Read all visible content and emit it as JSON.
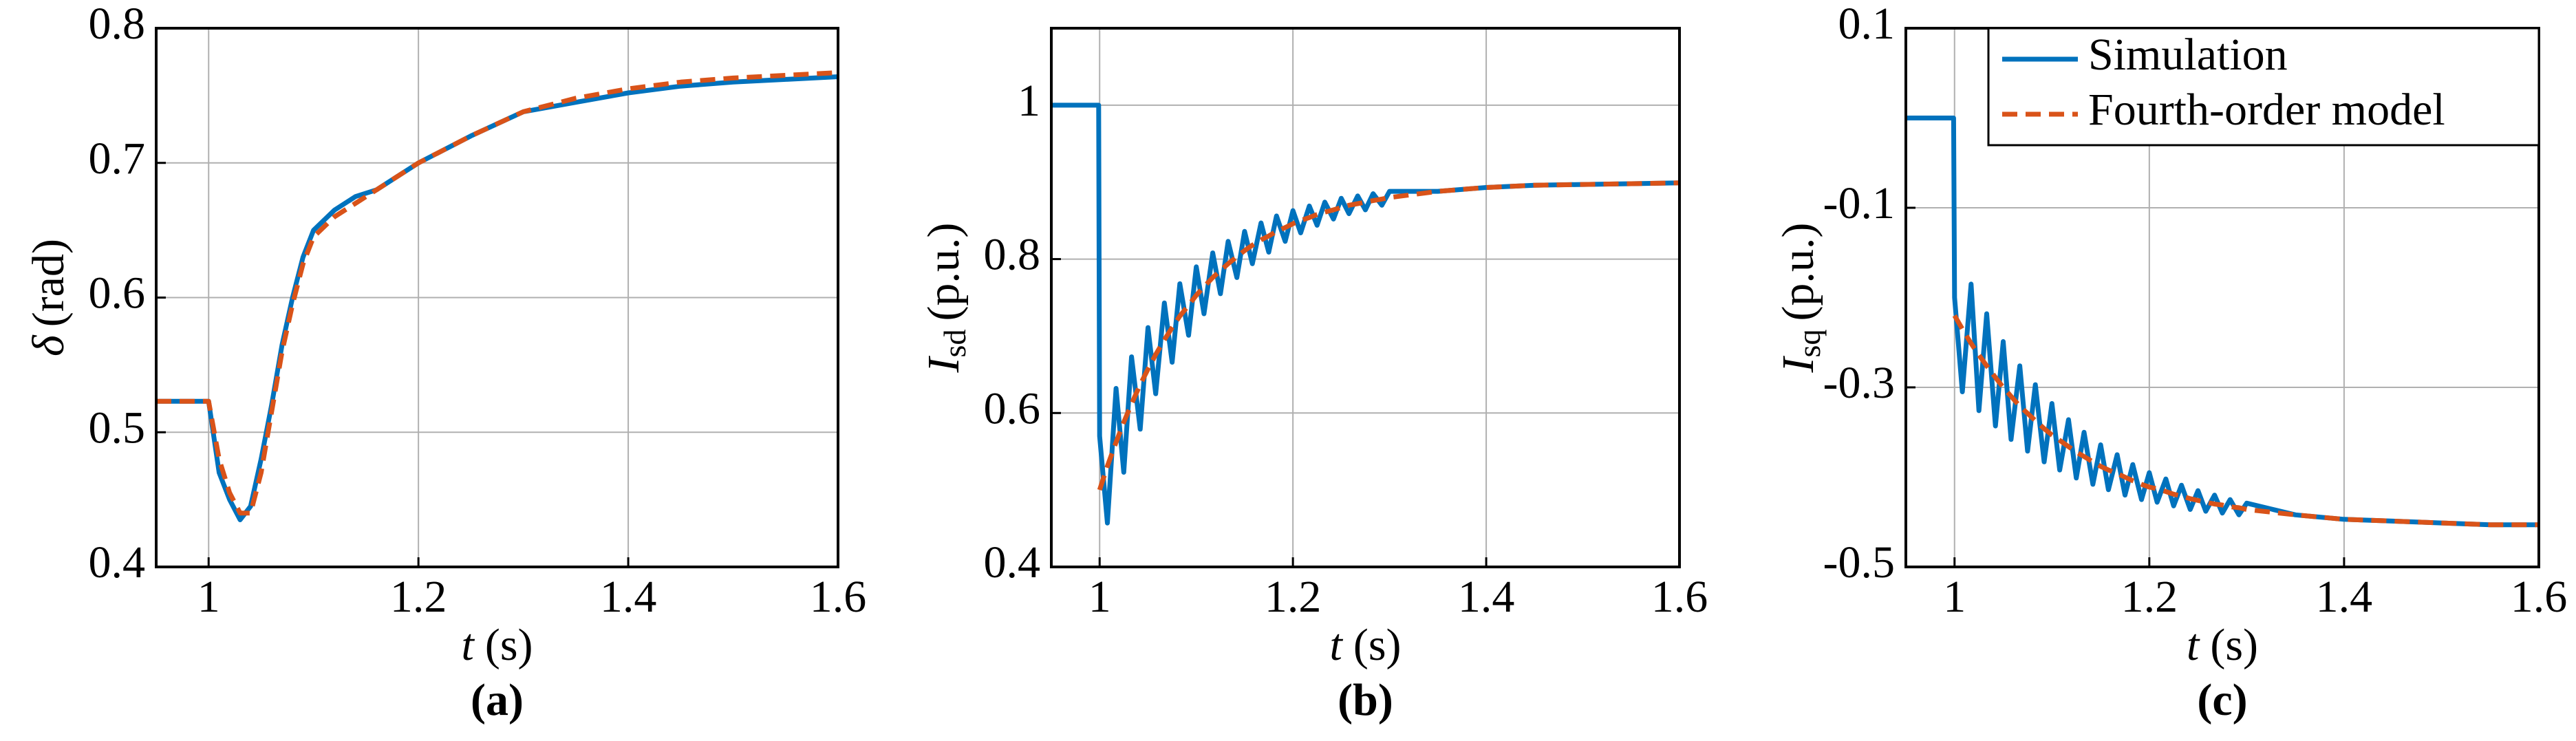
{
  "chart_data": [
    {
      "type": "line",
      "panel": "(a)",
      "xlabel": {
        "symbol": "t",
        "unit": "(s)"
      },
      "ylabel": {
        "symbol": "δ",
        "unit": "(rad)"
      },
      "xlim": [
        0.95,
        1.6
      ],
      "xticks": [
        1,
        1.2,
        1.4,
        1.6
      ],
      "ylim": [
        0.4,
        0.8
      ],
      "yticks": [
        0.4,
        0.5,
        0.6,
        0.7,
        0.8
      ],
      "grid": true,
      "x": [
        0.95,
        0.999,
        1.0,
        1.01,
        1.02,
        1.03,
        1.04,
        1.05,
        1.06,
        1.07,
        1.08,
        1.09,
        1.1,
        1.12,
        1.14,
        1.16,
        1.18,
        1.2,
        1.25,
        1.3,
        1.35,
        1.4,
        1.45,
        1.5,
        1.55,
        1.6
      ],
      "series": [
        {
          "color": "#0072BD",
          "dash": false,
          "values": [
            0.523,
            0.523,
            0.523,
            0.47,
            0.45,
            0.435,
            0.445,
            0.48,
            0.52,
            0.565,
            0.6,
            0.63,
            0.65,
            0.665,
            0.675,
            0.68,
            0.69,
            0.7,
            0.72,
            0.738,
            0.745,
            0.752,
            0.757,
            0.76,
            0.762,
            0.764
          ]
        },
        {
          "color": "#D95319",
          "dash": true,
          "values": [
            0.523,
            0.523,
            0.523,
            0.48,
            0.455,
            0.44,
            0.44,
            0.47,
            0.515,
            0.56,
            0.595,
            0.625,
            0.645,
            0.66,
            0.67,
            0.68,
            0.69,
            0.7,
            0.72,
            0.738,
            0.748,
            0.755,
            0.76,
            0.763,
            0.765,
            0.767
          ]
        }
      ]
    },
    {
      "type": "line",
      "panel": "(b)",
      "xlabel": {
        "symbol": "t",
        "unit": "(s)"
      },
      "ylabel": {
        "symbol": "I",
        "sub": "sd",
        "unit": "(p.u.)"
      },
      "xlim": [
        0.95,
        1.6
      ],
      "xticks": [
        1,
        1.2,
        1.4,
        1.6
      ],
      "ylim": [
        0.4,
        1.1
      ],
      "yticks": [
        0.4,
        0.6,
        0.8,
        1
      ],
      "grid": true,
      "x": [
        0.95,
        0.999,
        1.0,
        1.008,
        1.017,
        1.025,
        1.033,
        1.042,
        1.05,
        1.058,
        1.067,
        1.075,
        1.083,
        1.092,
        1.1,
        1.108,
        1.117,
        1.125,
        1.133,
        1.142,
        1.15,
        1.158,
        1.167,
        1.175,
        1.183,
        1.192,
        1.2,
        1.208,
        1.217,
        1.225,
        1.233,
        1.242,
        1.25,
        1.258,
        1.267,
        1.275,
        1.283,
        1.292,
        1.3,
        1.35,
        1.4,
        1.45,
        1.5,
        1.55,
        1.6
      ],
      "series": [
        {
          "color": "#0072BD",
          "dash": false,
          "values": [
            1,
            1,
            0.57,
            0.457,
            0.632,
            0.523,
            0.673,
            0.579,
            0.711,
            0.625,
            0.743,
            0.666,
            0.768,
            0.701,
            0.79,
            0.729,
            0.808,
            0.755,
            0.823,
            0.776,
            0.836,
            0.794,
            0.847,
            0.809,
            0.856,
            0.823,
            0.863,
            0.834,
            0.869,
            0.844,
            0.874,
            0.852,
            0.879,
            0.859,
            0.882,
            0.864,
            0.885,
            0.87,
            0.888,
            0.888,
            0.893,
            0.896,
            0.897,
            0.898,
            0.899
          ]
        },
        {
          "color": "#D95319",
          "dash": true,
          "values": [
            null,
            null,
            0.5,
            0.531,
            0.562,
            0.588,
            0.612,
            0.637,
            0.657,
            0.676,
            0.695,
            0.711,
            0.726,
            0.74,
            0.753,
            0.764,
            0.776,
            0.785,
            0.794,
            0.803,
            0.811,
            0.818,
            0.825,
            0.83,
            0.836,
            0.841,
            0.846,
            0.85,
            0.854,
            0.858,
            0.861,
            0.864,
            0.867,
            0.87,
            0.872,
            0.874,
            0.876,
            0.878,
            0.88,
            0.888,
            0.893,
            0.896,
            0.897,
            0.898,
            0.899
          ]
        }
      ]
    },
    {
      "type": "line",
      "panel": "(c)",
      "xlabel": {
        "symbol": "t",
        "unit": "(s)"
      },
      "ylabel": {
        "symbol": "I",
        "sub": "sq",
        "unit": "(p.u.)"
      },
      "xlim": [
        0.95,
        1.6
      ],
      "xticks": [
        1,
        1.2,
        1.4,
        1.6
      ],
      "ylim": [
        -0.5,
        0.1
      ],
      "yticks": [
        -0.5,
        -0.3,
        -0.1,
        0.1
      ],
      "grid": true,
      "legend": "upper right",
      "x": [
        0.95,
        0.999,
        1.0,
        1.008,
        1.017,
        1.025,
        1.033,
        1.042,
        1.05,
        1.058,
        1.067,
        1.075,
        1.083,
        1.092,
        1.1,
        1.108,
        1.117,
        1.125,
        1.133,
        1.142,
        1.15,
        1.158,
        1.167,
        1.175,
        1.183,
        1.192,
        1.2,
        1.208,
        1.217,
        1.225,
        1.233,
        1.242,
        1.25,
        1.258,
        1.267,
        1.275,
        1.283,
        1.292,
        1.3,
        1.35,
        1.4,
        1.45,
        1.5,
        1.55,
        1.6
      ],
      "series": [
        {
          "name": "Simulation",
          "color": "#0072BD",
          "dash": false,
          "values": [
            0,
            0,
            -0.2,
            -0.305,
            -0.185,
            -0.326,
            -0.218,
            -0.343,
            -0.249,
            -0.358,
            -0.276,
            -0.371,
            -0.297,
            -0.383,
            -0.318,
            -0.392,
            -0.336,
            -0.401,
            -0.35,
            -0.408,
            -0.364,
            -0.414,
            -0.375,
            -0.42,
            -0.386,
            -0.425,
            -0.395,
            -0.428,
            -0.402,
            -0.432,
            -0.409,
            -0.436,
            -0.415,
            -0.438,
            -0.42,
            -0.44,
            -0.425,
            -0.442,
            -0.429,
            -0.442,
            -0.447,
            -0.449,
            -0.451,
            -0.453,
            -0.453
          ]
        },
        {
          "name": "Fourth-order model",
          "color": "#D95319",
          "dash": true,
          "values": [
            null,
            null,
            -0.22,
            -0.235,
            -0.251,
            -0.264,
            -0.276,
            -0.289,
            -0.3,
            -0.31,
            -0.321,
            -0.329,
            -0.337,
            -0.346,
            -0.353,
            -0.359,
            -0.366,
            -0.372,
            -0.377,
            -0.383,
            -0.388,
            -0.392,
            -0.396,
            -0.4,
            -0.404,
            -0.408,
            -0.411,
            -0.413,
            -0.416,
            -0.419,
            -0.421,
            -0.424,
            -0.426,
            -0.428,
            -0.43,
            -0.431,
            -0.433,
            -0.434,
            -0.436,
            -0.442,
            -0.447,
            -0.449,
            -0.451,
            -0.453,
            -0.453
          ]
        }
      ]
    }
  ]
}
